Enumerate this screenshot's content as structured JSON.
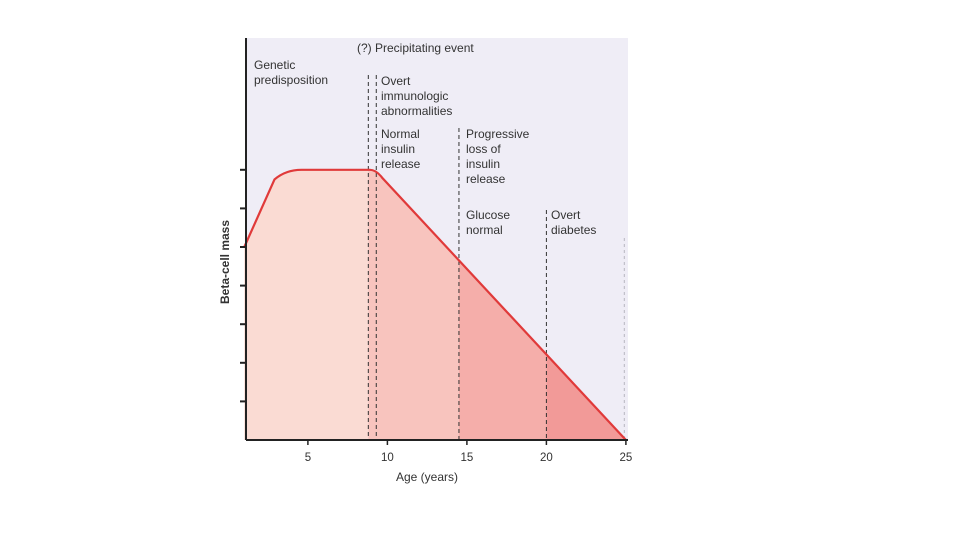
{
  "chart_data": {
    "type": "area",
    "xlabel": "Age (years)",
    "ylabel": "Beta-cell mass",
    "x_ticks": [
      5,
      10,
      15,
      20,
      25
    ],
    "xlim": [
      1,
      25
    ],
    "ylim": [
      0,
      7
    ],
    "y_ticks_unlabeled": [
      1,
      2,
      3,
      4,
      5,
      6,
      7
    ],
    "grid": false,
    "series": [
      {
        "points": [
          {
            "x": 1,
            "y": 5.0
          },
          {
            "x": 2,
            "y": 6.0
          },
          {
            "x": 3,
            "y": 6.8
          },
          {
            "x": 4,
            "y": 7.0
          },
          {
            "x": 5,
            "y": 7.0
          },
          {
            "x": 9,
            "y": 7.0
          },
          {
            "x": 9.5,
            "y": 6.85
          },
          {
            "x": 14.5,
            "y": 4.65
          },
          {
            "x": 20,
            "y": 2.25
          },
          {
            "x": 25,
            "y": 0.0
          }
        ]
      }
    ],
    "stages": [
      {
        "x_start": 1,
        "x_end": 8.8,
        "fill": "#fadbd3"
      },
      {
        "x_start": 8.8,
        "x_end": 14.5,
        "fill": "#f8c4be"
      },
      {
        "x_start": 14.5,
        "x_end": 20,
        "fill": "#f5aeaa"
      },
      {
        "x_start": 20,
        "x_end": 25,
        "fill": "#f29a98"
      }
    ],
    "markers": [
      {
        "x": 8.8,
        "style": "dashed"
      },
      {
        "x": 9.3,
        "style": "dashed"
      },
      {
        "x": 14.5,
        "style": "dashed"
      },
      {
        "x": 20,
        "style": "dashed"
      },
      {
        "x": 24.9,
        "style": "light"
      }
    ],
    "annotations": {
      "precipitating_event": "(?) Precipitating event",
      "genetic_predisposition": [
        "Genetic",
        "predisposition"
      ],
      "overt_immunologic_abnormalities": [
        "Overt",
        "immunologic",
        "abnormalities"
      ],
      "normal_insulin_release": [
        "Normal",
        "insulin",
        "release"
      ],
      "progressive_loss": [
        "Progressive",
        "loss of",
        "insulin",
        "release"
      ],
      "glucose_normal": [
        "Glucose",
        "normal"
      ],
      "overt_diabetes": [
        "Overt",
        "diabetes"
      ]
    },
    "colors": {
      "background": "#efedf6",
      "line": "#e03a3a",
      "axis": "#222222",
      "marker": "#333333"
    }
  }
}
